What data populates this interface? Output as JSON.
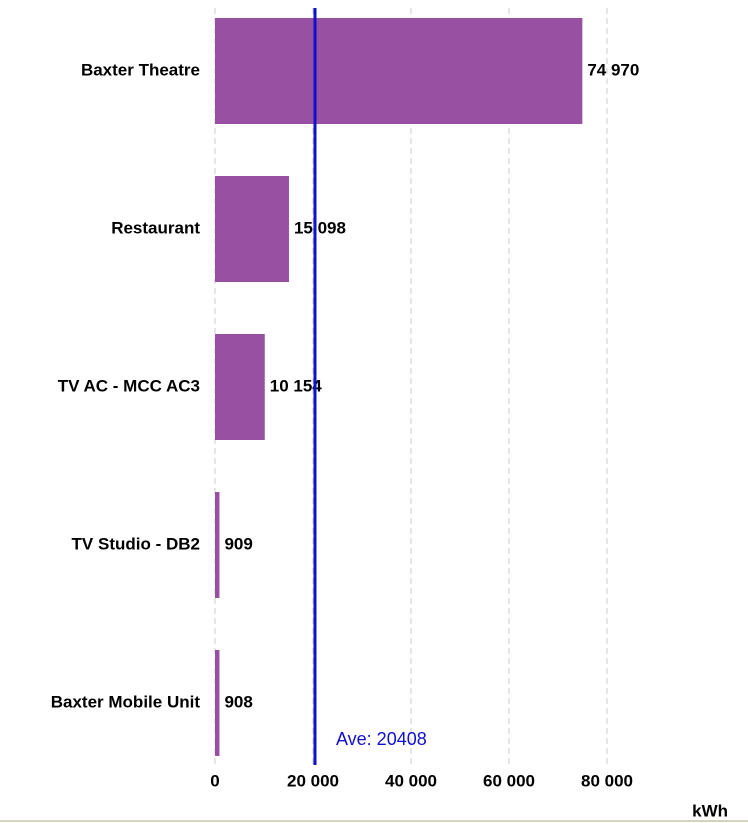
{
  "chart_data": {
    "type": "bar",
    "orientation": "horizontal",
    "categories": [
      "Baxter Theatre",
      "Restaurant",
      "TV AC - MCC AC3",
      "TV Studio - DB2",
      "Baxter Mobile Unit"
    ],
    "values": [
      74970,
      15098,
      10154,
      909,
      908
    ],
    "value_labels": [
      "74 970",
      "15 098",
      "10 154",
      "909",
      "908"
    ],
    "color": "#9850a3",
    "xlim": [
      0,
      80000
    ],
    "xticks": [
      0,
      {
        "value": 20000,
        "label": "20 000"
      },
      {
        "value": 40000,
        "label": "40 000"
      },
      {
        "value": 60000,
        "label": "60 000"
      },
      {
        "value": 80000,
        "label": "80 000"
      }
    ],
    "xlabel": "kWh",
    "grid": true,
    "average": {
      "value": 20408,
      "label": "Ave: 20408",
      "color": "#1010d0"
    }
  }
}
